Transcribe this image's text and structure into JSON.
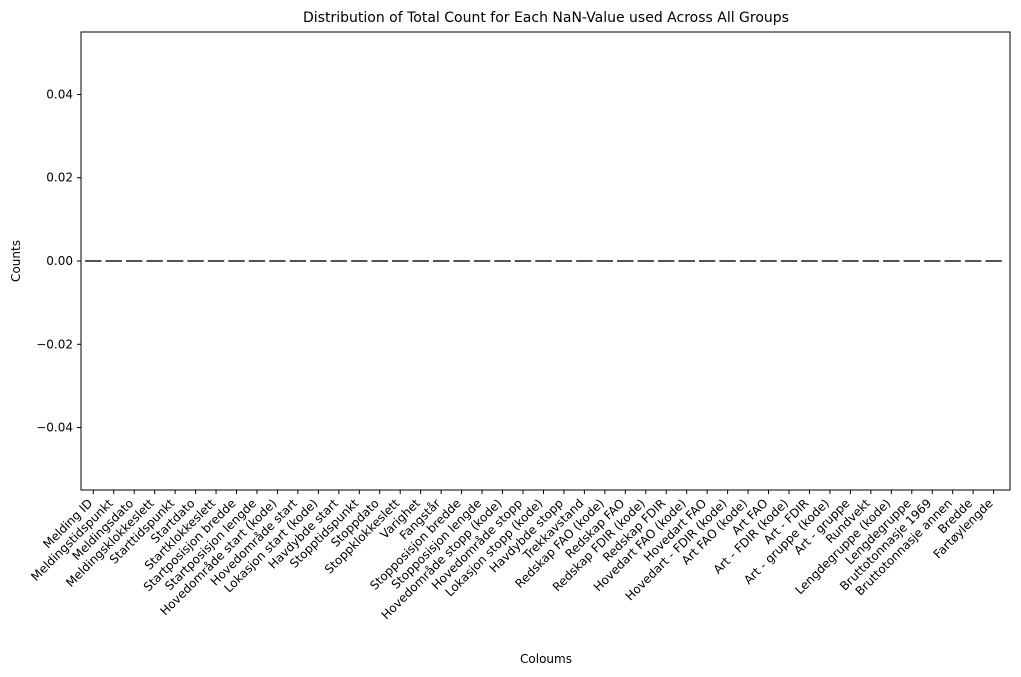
{
  "chart_data": {
    "type": "bar",
    "title": "Distribution of Total Count for Each NaN-Value used Across All Groups",
    "xlabel": "Coloums",
    "ylabel": "Counts",
    "ylim": [
      -0.055,
      0.055
    ],
    "yticks": [
      "0.04",
      "0.02",
      "0.00",
      "−0.02",
      "−0.04"
    ],
    "ytick_values": [
      0.04,
      0.02,
      0.0,
      -0.02,
      -0.04
    ],
    "categories": [
      "Melding ID",
      "Meldingstidspunkt",
      "Meldingsdato",
      "Meldingsklokkeslett",
      "Starttidspunkt",
      "Startdato",
      "Startklokkeslett",
      "Startposisjon bredde",
      "Startposisjon lengde",
      "Hovedområde start (kode)",
      "Hovedområde start",
      "Lokasjon start (kode)",
      "Havdybde start",
      "Stopptidspunkt",
      "Stoppdato",
      "Stoppklokkeslett",
      "Varighet",
      "Fangstår",
      "Stopposisjon bredde",
      "Stopposisjon lengde",
      "Hovedområde stopp (kode)",
      "Hovedområde stopp",
      "Lokasjon stopp (kode)",
      "Havdybde stopp",
      "Trekkavstand",
      "Redskap FAO (kode)",
      "Redskap FAO",
      "Redskap FDIR (kode)",
      "Redskap FDIR",
      "Hovedart FAO (kode)",
      "Hovedart FAO",
      "Hovedart - FDIR (kode)",
      "Art FAO (kode)",
      "Art FAO",
      "Art - FDIR (kode)",
      "Art - FDIR",
      "Art - gruppe (kode)",
      "Art - gruppe",
      "Rundvekt",
      "Lengdegruppe (kode)",
      "Lengdegruppe",
      "Bruttotonnasje 1969",
      "Bruttotonnasje annen",
      "Bredde",
      "Fartøylengde"
    ],
    "values": [
      0,
      0,
      0,
      0,
      0,
      0,
      0,
      0,
      0,
      0,
      0,
      0,
      0,
      0,
      0,
      0,
      0,
      0,
      0,
      0,
      0,
      0,
      0,
      0,
      0,
      0,
      0,
      0,
      0,
      0,
      0,
      0,
      0,
      0,
      0,
      0,
      0,
      0,
      0,
      0,
      0,
      0,
      0,
      0,
      0
    ],
    "grid": false,
    "colors": {
      "axis": "#000000",
      "bar_edge": "#3f3f3f"
    }
  }
}
